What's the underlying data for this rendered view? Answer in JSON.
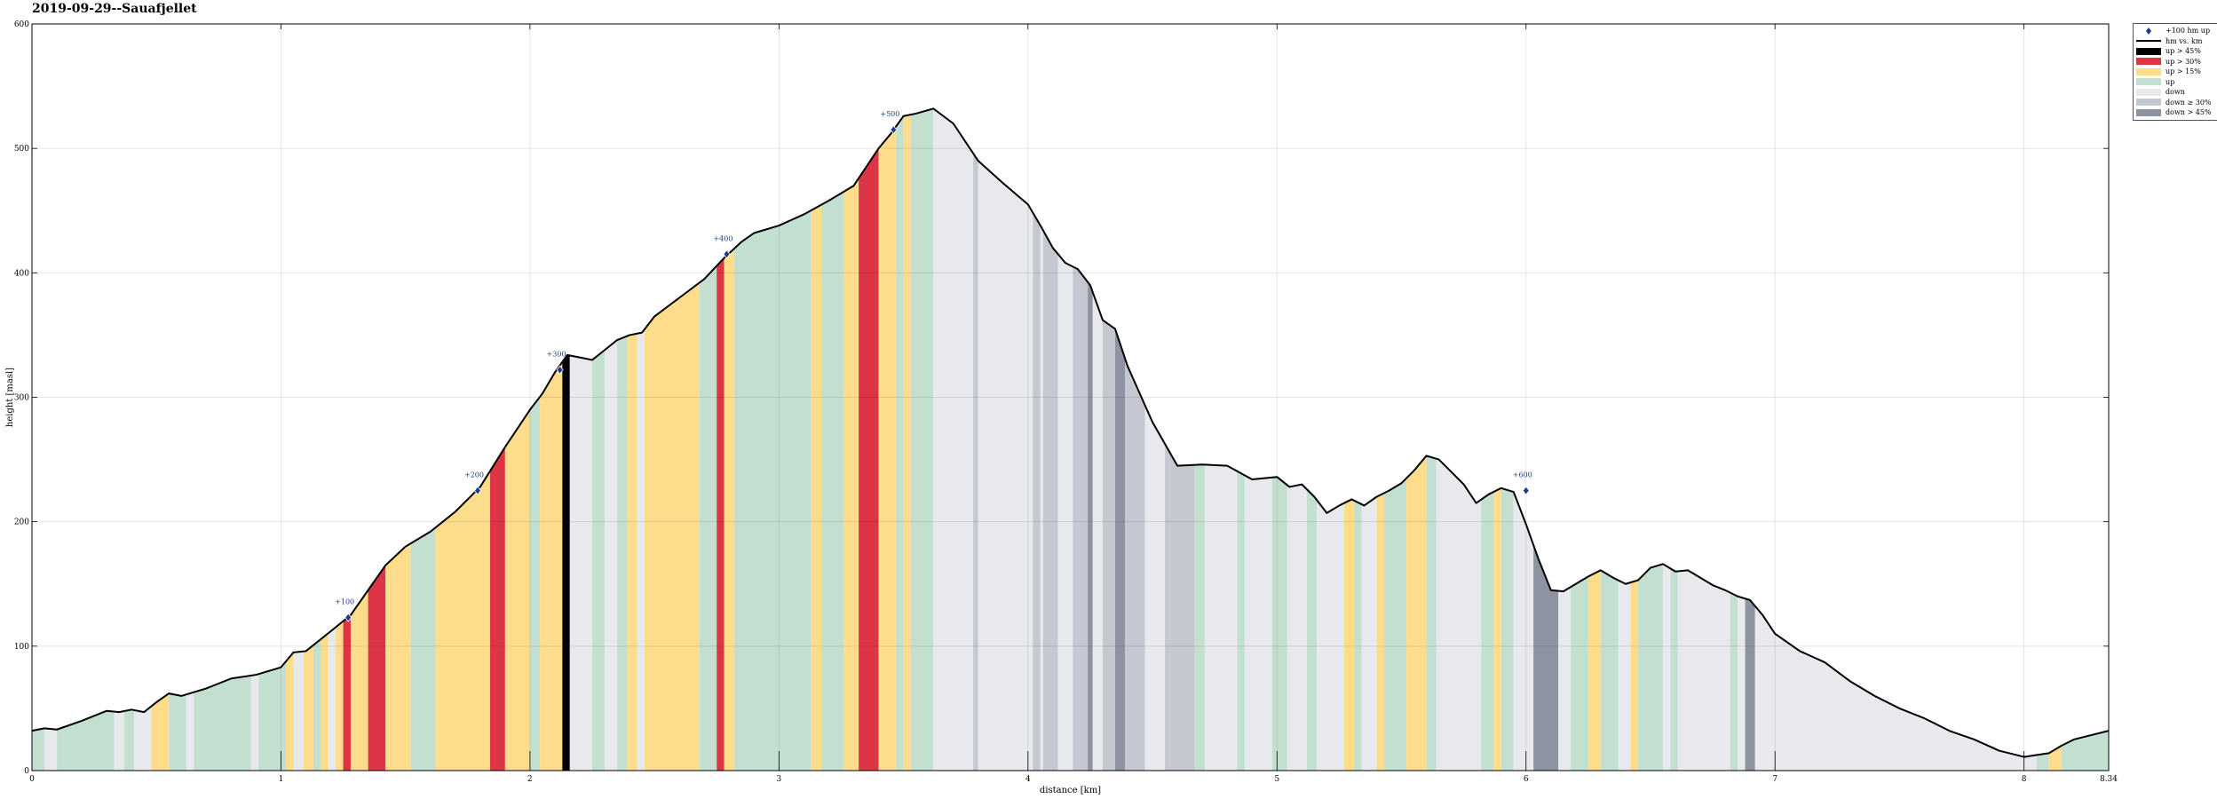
{
  "title": "2019-09-29--Sauafjellet",
  "legend": [
    {
      "label": "+100 hm up",
      "kind": "marker",
      "color": "#1f3a8a"
    },
    {
      "label": "hm vs. km",
      "kind": "line",
      "color": "#000000"
    },
    {
      "label": "up > 45%",
      "kind": "fill",
      "color": "#000000"
    },
    {
      "label": "up > 30%",
      "kind": "fill",
      "color": "#dc3545"
    },
    {
      "label": "up > 15%",
      "kind": "fill",
      "color": "#fddc8c"
    },
    {
      "label": "up",
      "kind": "fill",
      "color": "#c3dfd0"
    },
    {
      "label": "down",
      "kind": "fill",
      "color": "#e8e9ec"
    },
    {
      "label": "down ≥ 30%",
      "kind": "fill",
      "color": "#c5c8d0"
    },
    {
      "label": "down > 45%",
      "kind": "fill",
      "color": "#8d93a0"
    }
  ],
  "chart_data": {
    "type": "area",
    "title": "2019-09-29--Sauafjellet",
    "xlabel": "distance [km]",
    "ylabel": "height [masl]",
    "xlim": [
      0,
      8.34
    ],
    "ylim": [
      0,
      600
    ],
    "xticks": [
      "0",
      "1",
      "2",
      "3",
      "4",
      "5",
      "6",
      "7",
      "8",
      "8.34"
    ],
    "yticks": [
      "0",
      "100",
      "200",
      "300",
      "400",
      "500",
      "600"
    ],
    "grid": true,
    "legend_position": "outside-top-right",
    "series": [
      {
        "name": "hm vs. km",
        "x": [
          0,
          0.05,
          0.1,
          0.2,
          0.3,
          0.35,
          0.4,
          0.45,
          0.5,
          0.55,
          0.6,
          0.65,
          0.7,
          0.75,
          0.8,
          0.9,
          1.0,
          1.05,
          1.1,
          1.2,
          1.28,
          1.35,
          1.42,
          1.5,
          1.6,
          1.7,
          1.8,
          1.9,
          2.0,
          2.05,
          2.1,
          2.15,
          2.2,
          2.25,
          2.3,
          2.35,
          2.4,
          2.45,
          2.5,
          2.6,
          2.7,
          2.78,
          2.85,
          2.9,
          3.0,
          3.1,
          3.2,
          3.3,
          3.4,
          3.45,
          3.5,
          3.55,
          3.62,
          3.7,
          3.8,
          3.9,
          4.0,
          4.05,
          4.1,
          4.15,
          4.2,
          4.25,
          4.3,
          4.35,
          4.4,
          4.5,
          4.6,
          4.7,
          4.8,
          4.9,
          5.0,
          5.05,
          5.1,
          5.15,
          5.2,
          5.25,
          5.3,
          5.35,
          5.4,
          5.45,
          5.5,
          5.55,
          5.6,
          5.65,
          5.7,
          5.75,
          5.8,
          5.85,
          5.9,
          5.95,
          6.0,
          6.05,
          6.1,
          6.15,
          6.2,
          6.25,
          6.3,
          6.35,
          6.4,
          6.45,
          6.5,
          6.55,
          6.6,
          6.65,
          6.7,
          6.75,
          6.8,
          6.85,
          6.9,
          6.95,
          7.0,
          7.1,
          7.2,
          7.3,
          7.4,
          7.5,
          7.6,
          7.7,
          7.8,
          7.9,
          8.0,
          8.1,
          8.15,
          8.2,
          8.3,
          8.34
        ],
        "y": [
          32,
          34,
          33,
          40,
          48,
          47,
          49,
          47,
          55,
          62,
          60,
          63,
          66,
          70,
          74,
          77,
          83,
          95,
          96,
          112,
          125,
          145,
          165,
          180,
          192,
          208,
          228,
          260,
          290,
          303,
          320,
          334,
          332,
          330,
          338,
          346,
          350,
          352,
          365,
          380,
          395,
          412,
          425,
          432,
          438,
          447,
          458,
          470,
          500,
          512,
          526,
          528,
          532,
          520,
          490,
          472,
          455,
          438,
          420,
          408,
          403,
          390,
          362,
          355,
          325,
          280,
          245,
          246,
          245,
          234,
          236,
          228,
          230,
          220,
          207,
          213,
          218,
          213,
          220,
          225,
          231,
          241,
          253,
          250,
          240,
          230,
          215,
          222,
          227,
          224,
          198,
          170,
          145,
          144,
          150,
          156,
          161,
          155,
          150,
          153,
          163,
          166,
          160,
          161,
          155,
          149,
          145,
          140,
          137,
          125,
          110,
          96,
          87,
          72,
          60,
          50,
          42,
          32,
          25,
          16,
          11,
          14,
          20,
          25,
          30,
          32
        ]
      }
    ],
    "segments": [
      {
        "x0": 0.0,
        "x1": 0.05,
        "class": "up"
      },
      {
        "x0": 0.05,
        "x1": 0.1,
        "class": "down"
      },
      {
        "x0": 0.1,
        "x1": 0.33,
        "class": "up"
      },
      {
        "x0": 0.33,
        "x1": 0.37,
        "class": "down"
      },
      {
        "x0": 0.37,
        "x1": 0.41,
        "class": "up"
      },
      {
        "x0": 0.41,
        "x1": 0.48,
        "class": "down"
      },
      {
        "x0": 0.48,
        "x1": 0.55,
        "class": "up > 15%"
      },
      {
        "x0": 0.55,
        "x1": 0.62,
        "class": "up"
      },
      {
        "x0": 0.62,
        "x1": 0.65,
        "class": "down"
      },
      {
        "x0": 0.65,
        "x1": 0.88,
        "class": "up"
      },
      {
        "x0": 0.88,
        "x1": 0.91,
        "class": "down"
      },
      {
        "x0": 0.91,
        "x1": 1.02,
        "class": "up"
      },
      {
        "x0": 1.02,
        "x1": 1.05,
        "class": "up > 15%"
      },
      {
        "x0": 1.05,
        "x1": 1.09,
        "class": "down"
      },
      {
        "x0": 1.09,
        "x1": 1.13,
        "class": "up > 15%"
      },
      {
        "x0": 1.13,
        "x1": 1.16,
        "class": "up"
      },
      {
        "x0": 1.16,
        "x1": 1.19,
        "class": "up > 15%"
      },
      {
        "x0": 1.19,
        "x1": 1.22,
        "class": "down"
      },
      {
        "x0": 1.22,
        "x1": 1.25,
        "class": "up > 15%"
      },
      {
        "x0": 1.25,
        "x1": 1.28,
        "class": "up > 30%"
      },
      {
        "x0": 1.28,
        "x1": 1.35,
        "class": "up > 15%"
      },
      {
        "x0": 1.35,
        "x1": 1.42,
        "class": "up > 30%"
      },
      {
        "x0": 1.42,
        "x1": 1.52,
        "class": "up > 15%"
      },
      {
        "x0": 1.52,
        "x1": 1.62,
        "class": "up"
      },
      {
        "x0": 1.62,
        "x1": 1.84,
        "class": "up > 15%"
      },
      {
        "x0": 1.84,
        "x1": 1.9,
        "class": "up > 30%"
      },
      {
        "x0": 1.9,
        "x1": 2.0,
        "class": "up > 15%"
      },
      {
        "x0": 2.0,
        "x1": 2.04,
        "class": "up"
      },
      {
        "x0": 2.04,
        "x1": 2.13,
        "class": "up > 15%"
      },
      {
        "x0": 2.13,
        "x1": 2.16,
        "class": "up > 45%"
      },
      {
        "x0": 2.16,
        "x1": 2.25,
        "class": "down"
      },
      {
        "x0": 2.25,
        "x1": 2.3,
        "class": "up"
      },
      {
        "x0": 2.3,
        "x1": 2.35,
        "class": "down"
      },
      {
        "x0": 2.35,
        "x1": 2.39,
        "class": "up"
      },
      {
        "x0": 2.39,
        "x1": 2.43,
        "class": "up > 15%"
      },
      {
        "x0": 2.43,
        "x1": 2.46,
        "class": "down"
      },
      {
        "x0": 2.46,
        "x1": 2.68,
        "class": "up > 15%"
      },
      {
        "x0": 2.68,
        "x1": 2.75,
        "class": "up"
      },
      {
        "x0": 2.75,
        "x1": 2.78,
        "class": "up > 30%"
      },
      {
        "x0": 2.78,
        "x1": 2.82,
        "class": "up > 15%"
      },
      {
        "x0": 2.82,
        "x1": 3.13,
        "class": "up"
      },
      {
        "x0": 3.13,
        "x1": 3.17,
        "class": "up > 15%"
      },
      {
        "x0": 3.17,
        "x1": 3.26,
        "class": "up"
      },
      {
        "x0": 3.26,
        "x1": 3.32,
        "class": "up > 15%"
      },
      {
        "x0": 3.32,
        "x1": 3.4,
        "class": "up > 30%"
      },
      {
        "x0": 3.4,
        "x1": 3.47,
        "class": "up > 15%"
      },
      {
        "x0": 3.47,
        "x1": 3.5,
        "class": "up"
      },
      {
        "x0": 3.5,
        "x1": 3.53,
        "class": "up > 15%"
      },
      {
        "x0": 3.53,
        "x1": 3.62,
        "class": "up"
      },
      {
        "x0": 3.62,
        "x1": 3.78,
        "class": "down"
      },
      {
        "x0": 3.78,
        "x1": 3.8,
        "class": "down ≥ 30%"
      },
      {
        "x0": 3.8,
        "x1": 4.02,
        "class": "down"
      },
      {
        "x0": 4.02,
        "x1": 4.05,
        "class": "down ≥ 30%"
      },
      {
        "x0": 4.05,
        "x1": 4.06,
        "class": "down"
      },
      {
        "x0": 4.06,
        "x1": 4.12,
        "class": "down ≥ 30%"
      },
      {
        "x0": 4.12,
        "x1": 4.18,
        "class": "down"
      },
      {
        "x0": 4.18,
        "x1": 4.24,
        "class": "down ≥ 30%"
      },
      {
        "x0": 4.24,
        "x1": 4.26,
        "class": "down > 45%"
      },
      {
        "x0": 4.26,
        "x1": 4.3,
        "class": "down"
      },
      {
        "x0": 4.3,
        "x1": 4.35,
        "class": "down ≥ 30%"
      },
      {
        "x0": 4.35,
        "x1": 4.39,
        "class": "down > 45%"
      },
      {
        "x0": 4.39,
        "x1": 4.47,
        "class": "down ≥ 30%"
      },
      {
        "x0": 4.47,
        "x1": 4.55,
        "class": "down"
      },
      {
        "x0": 4.55,
        "x1": 4.67,
        "class": "down ≥ 30%"
      },
      {
        "x0": 4.67,
        "x1": 4.71,
        "class": "up"
      },
      {
        "x0": 4.71,
        "x1": 4.84,
        "class": "down"
      },
      {
        "x0": 4.84,
        "x1": 4.87,
        "class": "up"
      },
      {
        "x0": 4.87,
        "x1": 4.98,
        "class": "down"
      },
      {
        "x0": 4.98,
        "x1": 5.04,
        "class": "up"
      },
      {
        "x0": 5.04,
        "x1": 5.12,
        "class": "down"
      },
      {
        "x0": 5.12,
        "x1": 5.16,
        "class": "up"
      },
      {
        "x0": 5.16,
        "x1": 5.27,
        "class": "down"
      },
      {
        "x0": 5.27,
        "x1": 5.31,
        "class": "up > 15%"
      },
      {
        "x0": 5.31,
        "x1": 5.34,
        "class": "up"
      },
      {
        "x0": 5.34,
        "x1": 5.4,
        "class": "down"
      },
      {
        "x0": 5.4,
        "x1": 5.43,
        "class": "up > 15%"
      },
      {
        "x0": 5.43,
        "x1": 5.52,
        "class": "up"
      },
      {
        "x0": 5.52,
        "x1": 5.6,
        "class": "up > 15%"
      },
      {
        "x0": 5.6,
        "x1": 5.64,
        "class": "up"
      },
      {
        "x0": 5.64,
        "x1": 5.82,
        "class": "down"
      },
      {
        "x0": 5.82,
        "x1": 5.87,
        "class": "up"
      },
      {
        "x0": 5.87,
        "x1": 5.9,
        "class": "up > 15%"
      },
      {
        "x0": 5.9,
        "x1": 5.95,
        "class": "up"
      },
      {
        "x0": 5.95,
        "x1": 6.03,
        "class": "down"
      },
      {
        "x0": 6.03,
        "x1": 6.13,
        "class": "down > 45%"
      },
      {
        "x0": 6.13,
        "x1": 6.18,
        "class": "down"
      },
      {
        "x0": 6.18,
        "x1": 6.25,
        "class": "up"
      },
      {
        "x0": 6.25,
        "x1": 6.3,
        "class": "up > 15%"
      },
      {
        "x0": 6.3,
        "x1": 6.37,
        "class": "up"
      },
      {
        "x0": 6.37,
        "x1": 6.42,
        "class": "down"
      },
      {
        "x0": 6.42,
        "x1": 6.45,
        "class": "up > 15%"
      },
      {
        "x0": 6.45,
        "x1": 6.55,
        "class": "up"
      },
      {
        "x0": 6.55,
        "x1": 6.58,
        "class": "down"
      },
      {
        "x0": 6.58,
        "x1": 6.61,
        "class": "up"
      },
      {
        "x0": 6.61,
        "x1": 6.82,
        "class": "down"
      },
      {
        "x0": 6.82,
        "x1": 6.85,
        "class": "up"
      },
      {
        "x0": 6.85,
        "x1": 6.88,
        "class": "down"
      },
      {
        "x0": 6.88,
        "x1": 6.92,
        "class": "down > 45%"
      },
      {
        "x0": 6.92,
        "x1": 8.05,
        "class": "down"
      },
      {
        "x0": 8.05,
        "x1": 8.1,
        "class": "up"
      },
      {
        "x0": 8.1,
        "x1": 8.15,
        "class": "up > 15%"
      },
      {
        "x0": 8.15,
        "x1": 8.34,
        "class": "up"
      }
    ],
    "markers": [
      {
        "x": 1.27,
        "y": 123,
        "label": "+100"
      },
      {
        "x": 1.79,
        "y": 225,
        "label": "+200"
      },
      {
        "x": 2.12,
        "y": 322,
        "label": "+300"
      },
      {
        "x": 2.79,
        "y": 415,
        "label": "+400"
      },
      {
        "x": 3.46,
        "y": 515,
        "label": "+500"
      },
      {
        "x": 6.0,
        "y": 225,
        "label": "+600"
      }
    ]
  }
}
